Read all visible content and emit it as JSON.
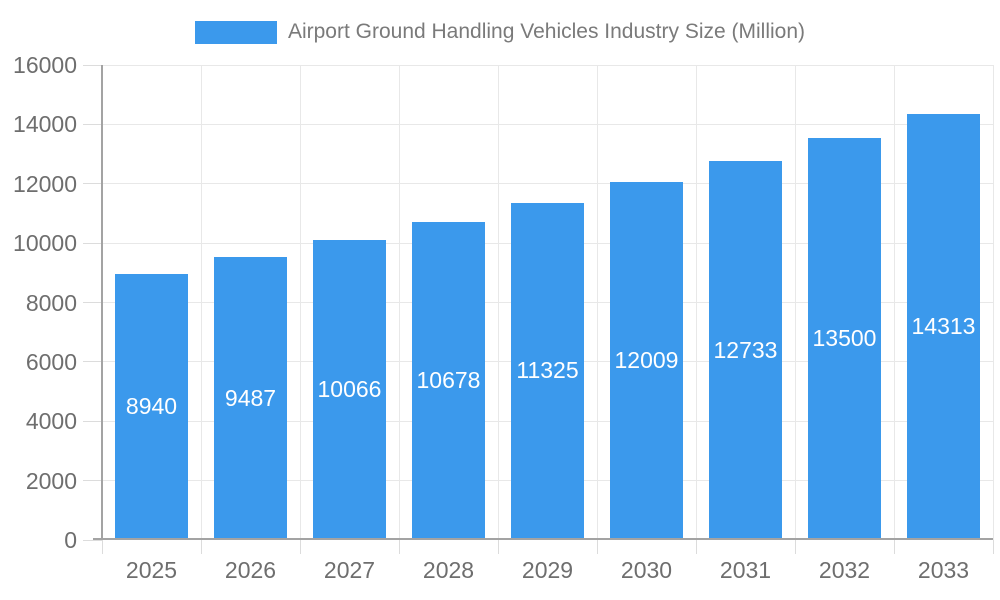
{
  "chart_data": {
    "type": "bar",
    "title": "Airport Ground Handling Vehicles Industry Size (Million)",
    "legend": {
      "position": "top",
      "label": "Airport Ground Handling Vehicles Industry Size (Million)"
    },
    "categories": [
      "2025",
      "2026",
      "2027",
      "2028",
      "2029",
      "2030",
      "2031",
      "2032",
      "2033"
    ],
    "series": [
      {
        "name": "Airport Ground Handling Vehicles Industry Size (Million)",
        "values": [
          8940,
          9487,
          10066,
          10678,
          11325,
          12009,
          12733,
          13500,
          14313
        ]
      }
    ],
    "xlabel": "",
    "ylabel": "",
    "ylim": [
      0,
      16000
    ],
    "y_ticks": [
      0,
      2000,
      4000,
      6000,
      8000,
      10000,
      12000,
      14000,
      16000
    ],
    "grid": true,
    "data_labels_position": "inside-center",
    "colors": {
      "bar": "#3B99EC",
      "grid": "#E8E8E8",
      "tick_line": "#DCDCDC",
      "axis_line": "#A3A3A3",
      "tick_text": "#6E6E6E",
      "title_text": "#7A7A7A",
      "data_label_text": "#FFFFFF",
      "background": "#FFFFFF"
    }
  }
}
